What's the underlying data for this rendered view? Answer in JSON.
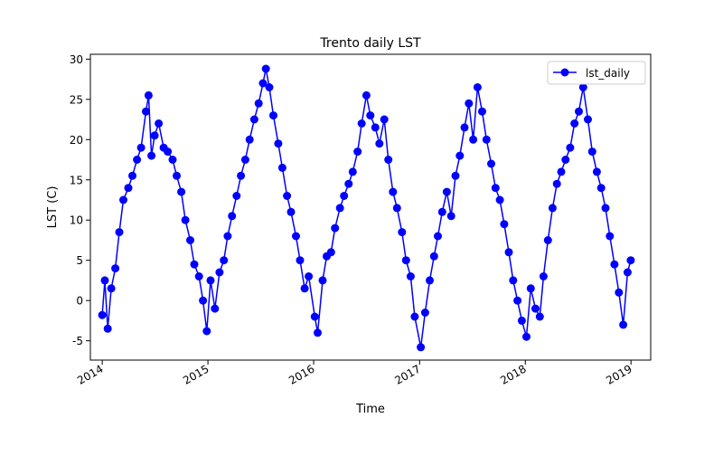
{
  "chart_data": {
    "type": "line",
    "title": "Trento daily LST",
    "xlabel": "Time",
    "ylabel": "LST (C)",
    "x_ticks": [
      "2014",
      "2015",
      "2016",
      "2017",
      "2018",
      "2019"
    ],
    "y_ticks": [
      -5,
      0,
      5,
      10,
      15,
      20,
      25,
      30
    ],
    "xlim": [
      "2013-11-21",
      "2019-03-10"
    ],
    "ylim": [
      -7.4,
      30.6
    ],
    "grid": false,
    "legend_position": "upper-right",
    "series": [
      {
        "name": "lst_daily",
        "color": "#0000ff",
        "marker": "circle",
        "points": [
          [
            "2014-01-01",
            -1.8
          ],
          [
            "2014-01-10",
            2.5
          ],
          [
            "2014-01-20",
            -3.5
          ],
          [
            "2014-02-01",
            1.5
          ],
          [
            "2014-02-15",
            4.0
          ],
          [
            "2014-03-01",
            8.5
          ],
          [
            "2014-03-15",
            12.5
          ],
          [
            "2014-04-01",
            14.0
          ],
          [
            "2014-04-15",
            15.5
          ],
          [
            "2014-05-01",
            17.5
          ],
          [
            "2014-05-15",
            19.0
          ],
          [
            "2014-06-01",
            23.5
          ],
          [
            "2014-06-10",
            25.5
          ],
          [
            "2014-06-20",
            18.0
          ],
          [
            "2014-07-01",
            20.5
          ],
          [
            "2014-07-15",
            22.0
          ],
          [
            "2014-08-01",
            19.0
          ],
          [
            "2014-08-15",
            18.5
          ],
          [
            "2014-09-01",
            17.5
          ],
          [
            "2014-09-15",
            15.5
          ],
          [
            "2014-10-01",
            13.5
          ],
          [
            "2014-10-15",
            10.0
          ],
          [
            "2014-11-01",
            7.5
          ],
          [
            "2014-11-15",
            4.5
          ],
          [
            "2014-12-01",
            3.0
          ],
          [
            "2014-12-15",
            0.0
          ],
          [
            "2014-12-28",
            -3.8
          ],
          [
            "2015-01-10",
            2.5
          ],
          [
            "2015-01-25",
            -1.0
          ],
          [
            "2015-02-10",
            3.5
          ],
          [
            "2015-02-25",
            5.0
          ],
          [
            "2015-03-10",
            8.0
          ],
          [
            "2015-03-25",
            10.5
          ],
          [
            "2015-04-10",
            13.0
          ],
          [
            "2015-04-25",
            15.5
          ],
          [
            "2015-05-10",
            17.5
          ],
          [
            "2015-05-25",
            20.0
          ],
          [
            "2015-06-10",
            22.5
          ],
          [
            "2015-06-25",
            24.5
          ],
          [
            "2015-07-10",
            27.0
          ],
          [
            "2015-07-20",
            28.8
          ],
          [
            "2015-08-01",
            26.5
          ],
          [
            "2015-08-15",
            23.0
          ],
          [
            "2015-09-01",
            19.5
          ],
          [
            "2015-09-15",
            16.5
          ],
          [
            "2015-10-01",
            13.0
          ],
          [
            "2015-10-15",
            11.0
          ],
          [
            "2015-11-01",
            8.0
          ],
          [
            "2015-11-15",
            5.0
          ],
          [
            "2015-12-01",
            1.5
          ],
          [
            "2015-12-15",
            3.0
          ],
          [
            "2016-01-05",
            -2.0
          ],
          [
            "2016-01-15",
            -4.0
          ],
          [
            "2016-02-01",
            2.5
          ],
          [
            "2016-02-15",
            5.5
          ],
          [
            "2016-03-01",
            6.0
          ],
          [
            "2016-03-15",
            9.0
          ],
          [
            "2016-04-01",
            11.5
          ],
          [
            "2016-04-15",
            13.0
          ],
          [
            "2016-05-01",
            14.5
          ],
          [
            "2016-05-15",
            16.0
          ],
          [
            "2016-06-01",
            18.5
          ],
          [
            "2016-06-15",
            22.0
          ],
          [
            "2016-07-01",
            25.5
          ],
          [
            "2016-07-15",
            23.0
          ],
          [
            "2016-08-01",
            21.5
          ],
          [
            "2016-08-15",
            19.5
          ],
          [
            "2016-09-01",
            22.5
          ],
          [
            "2016-09-15",
            17.5
          ],
          [
            "2016-10-01",
            13.5
          ],
          [
            "2016-10-15",
            11.5
          ],
          [
            "2016-11-01",
            8.5
          ],
          [
            "2016-11-15",
            5.0
          ],
          [
            "2016-12-01",
            3.0
          ],
          [
            "2016-12-15",
            -2.0
          ],
          [
            "2017-01-05",
            -5.8
          ],
          [
            "2017-01-20",
            -1.5
          ],
          [
            "2017-02-05",
            2.5
          ],
          [
            "2017-02-20",
            5.5
          ],
          [
            "2017-03-05",
            8.0
          ],
          [
            "2017-03-20",
            11.0
          ],
          [
            "2017-04-05",
            13.5
          ],
          [
            "2017-04-20",
            10.5
          ],
          [
            "2017-05-05",
            15.5
          ],
          [
            "2017-05-20",
            18.0
          ],
          [
            "2017-06-05",
            21.5
          ],
          [
            "2017-06-20",
            24.5
          ],
          [
            "2017-07-05",
            20.0
          ],
          [
            "2017-07-20",
            26.5
          ],
          [
            "2017-08-05",
            23.5
          ],
          [
            "2017-08-20",
            20.0
          ],
          [
            "2017-09-05",
            17.0
          ],
          [
            "2017-09-20",
            14.0
          ],
          [
            "2017-10-05",
            12.5
          ],
          [
            "2017-10-20",
            9.5
          ],
          [
            "2017-11-05",
            6.0
          ],
          [
            "2017-11-20",
            2.5
          ],
          [
            "2017-12-05",
            0.0
          ],
          [
            "2017-12-20",
            -2.5
          ],
          [
            "2018-01-05",
            -4.5
          ],
          [
            "2018-01-20",
            1.5
          ],
          [
            "2018-02-05",
            -1.0
          ],
          [
            "2018-02-20",
            -2.0
          ],
          [
            "2018-03-05",
            3.0
          ],
          [
            "2018-03-20",
            7.5
          ],
          [
            "2018-04-05",
            11.5
          ],
          [
            "2018-04-20",
            14.5
          ],
          [
            "2018-05-05",
            16.0
          ],
          [
            "2018-05-20",
            17.5
          ],
          [
            "2018-06-05",
            19.0
          ],
          [
            "2018-06-20",
            22.0
          ],
          [
            "2018-07-05",
            23.5
          ],
          [
            "2018-07-20",
            26.5
          ],
          [
            "2018-08-05",
            22.5
          ],
          [
            "2018-08-20",
            18.5
          ],
          [
            "2018-09-05",
            16.0
          ],
          [
            "2018-09-20",
            14.0
          ],
          [
            "2018-10-05",
            11.5
          ],
          [
            "2018-10-20",
            8.0
          ],
          [
            "2018-11-05",
            4.5
          ],
          [
            "2018-11-20",
            1.0
          ],
          [
            "2018-12-05",
            -3.0
          ],
          [
            "2018-12-20",
            3.5
          ],
          [
            "2018-12-31",
            5.0
          ]
        ]
      }
    ]
  }
}
